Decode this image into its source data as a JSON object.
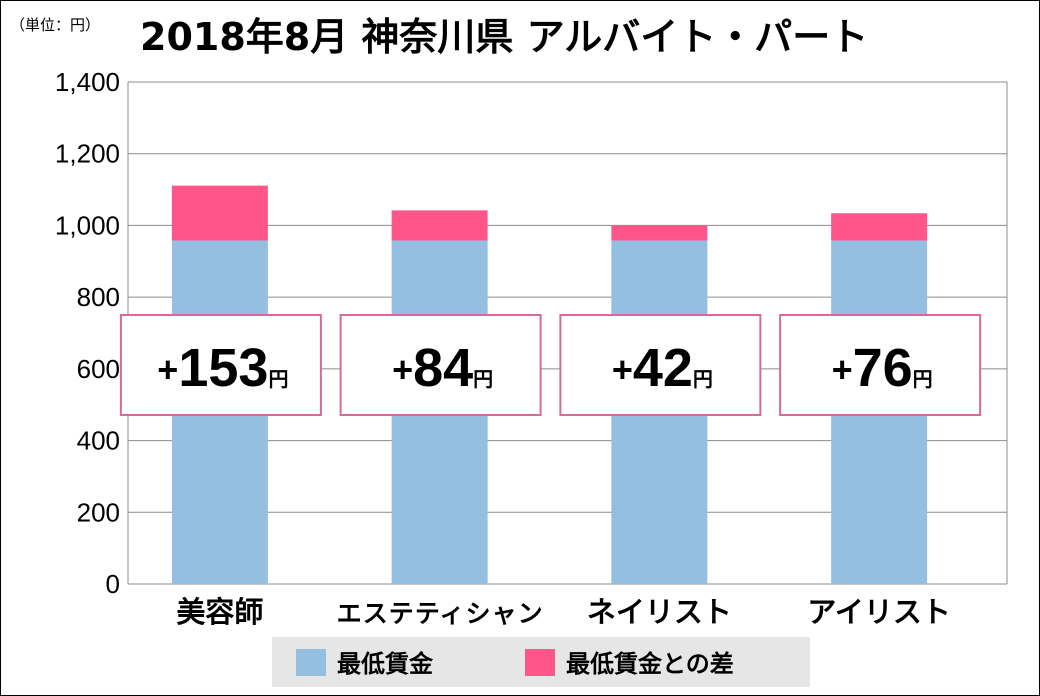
{
  "unit_label": "（単位：円）",
  "title": "2018年8月 神奈川県 アルバイト・パート",
  "chart_data": {
    "type": "bar",
    "stacked": true,
    "title": "2018年8月 神奈川県 アルバイト・パート",
    "unit": "（単位：円）",
    "categories": [
      "美容師",
      "エステティシャン",
      "ネイリスト",
      "アイリスト"
    ],
    "series": [
      {
        "name": "最低賃金",
        "values": [
          958,
          958,
          958,
          958
        ],
        "color": "#95bfe0"
      },
      {
        "name": "最低賃金との差",
        "values": [
          153,
          84,
          42,
          76
        ],
        "color": "#ff558a"
      }
    ],
    "diff_labels": [
      "153",
      "84",
      "42",
      "76"
    ],
    "diff_prefix": "+",
    "diff_suffix": "円",
    "ylim": [
      0,
      1400
    ],
    "yticks": [
      0,
      200,
      400,
      600,
      800,
      1000,
      1200,
      1400
    ],
    "ytick_labels": [
      "0",
      "200",
      "400",
      "600",
      "800",
      "1,000",
      "1,200",
      "1,400"
    ],
    "grid": true,
    "legend_position": "bottom"
  }
}
